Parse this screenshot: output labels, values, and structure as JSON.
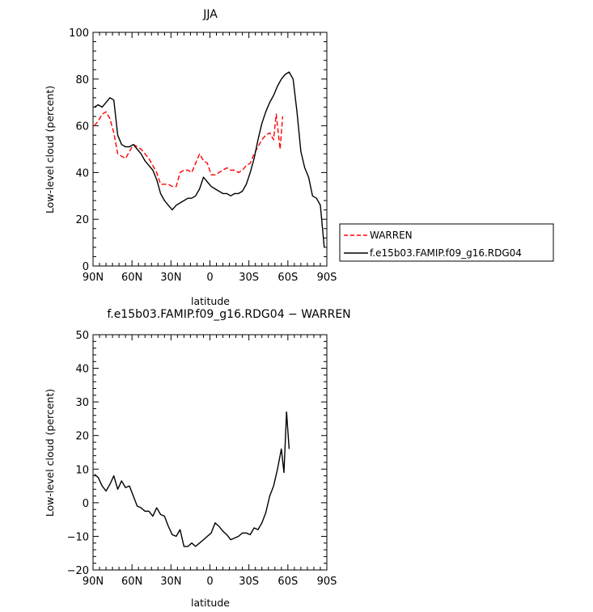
{
  "chart_data": [
    {
      "type": "line",
      "title": "JJA",
      "xlabel": "latitude",
      "ylabel": "Low-level cloud (percent)",
      "xlim": [
        90,
        -90
      ],
      "ylim": [
        0,
        100
      ],
      "x_ticks": [
        90,
        60,
        30,
        0,
        -30,
        -60,
        -90
      ],
      "x_tick_labels": [
        "90N",
        "60N",
        "30N",
        "0",
        "30S",
        "60S",
        "90S"
      ],
      "y_ticks": [
        0,
        20,
        40,
        60,
        80,
        100
      ],
      "y_tick_labels": [
        "0",
        "20",
        "40",
        "60",
        "80",
        "100"
      ],
      "legend_position": "right-outside",
      "series": [
        {
          "name": "WARREN",
          "color": "#ff0000",
          "style": "dashed",
          "points": [
            [
              89,
              60
            ],
            [
              86,
              62
            ],
            [
              83,
              65
            ],
            [
              80,
              66
            ],
            [
              77,
              63
            ],
            [
              74,
              57
            ],
            [
              71,
              48
            ],
            [
              68,
              47
            ],
            [
              65,
              46
            ],
            [
              62,
              49
            ],
            [
              59,
              52
            ],
            [
              56,
              51
            ],
            [
              53,
              50
            ],
            [
              50,
              48
            ],
            [
              47,
              46
            ],
            [
              44,
              43
            ],
            [
              41,
              40
            ],
            [
              38,
              35
            ],
            [
              35,
              35
            ],
            [
              32,
              35
            ],
            [
              29,
              34
            ],
            [
              26,
              34
            ],
            [
              23,
              40
            ],
            [
              20,
              41
            ],
            [
              17,
              41
            ],
            [
              14,
              40
            ],
            [
              11,
              44
            ],
            [
              8,
              48
            ],
            [
              5,
              45
            ],
            [
              2,
              44
            ],
            [
              -1,
              39
            ],
            [
              -4,
              39
            ],
            [
              -7,
              40
            ],
            [
              -10,
              41
            ],
            [
              -13,
              42
            ],
            [
              -16,
              41
            ],
            [
              -19,
              41
            ],
            [
              -22,
              40
            ],
            [
              -25,
              41
            ],
            [
              -28,
              43
            ],
            [
              -31,
              44
            ],
            [
              -34,
              48
            ],
            [
              -37,
              51
            ],
            [
              -40,
              54
            ],
            [
              -43,
              56
            ],
            [
              -46,
              57
            ],
            [
              -49,
              54
            ],
            [
              -51,
              65
            ],
            [
              -54,
              50
            ],
            [
              -56,
              64
            ]
          ]
        },
        {
          "name": "f.e15b03.FAMIP.f09_g16.RDG04",
          "color": "#000000",
          "style": "solid",
          "points": [
            [
              89,
              68
            ],
            [
              86,
              69
            ],
            [
              83,
              68
            ],
            [
              80,
              70
            ],
            [
              77,
              72
            ],
            [
              74,
              71
            ],
            [
              71,
              56
            ],
            [
              68,
              52
            ],
            [
              65,
              51
            ],
            [
              62,
              51
            ],
            [
              59,
              52
            ],
            [
              56,
              50
            ],
            [
              53,
              48
            ],
            [
              50,
              45
            ],
            [
              47,
              43
            ],
            [
              44,
              41
            ],
            [
              41,
              37
            ],
            [
              38,
              31
            ],
            [
              35,
              28
            ],
            [
              32,
              26
            ],
            [
              29,
              24
            ],
            [
              26,
              26
            ],
            [
              23,
              27
            ],
            [
              20,
              28
            ],
            [
              17,
              29
            ],
            [
              14,
              29
            ],
            [
              11,
              30
            ],
            [
              8,
              33
            ],
            [
              5,
              38
            ],
            [
              2,
              36
            ],
            [
              -1,
              34
            ],
            [
              -4,
              33
            ],
            [
              -7,
              32
            ],
            [
              -10,
              31
            ],
            [
              -13,
              31
            ],
            [
              -16,
              30
            ],
            [
              -19,
              31
            ],
            [
              -22,
              31
            ],
            [
              -25,
              32
            ],
            [
              -28,
              35
            ],
            [
              -31,
              40
            ],
            [
              -34,
              46
            ],
            [
              -37,
              54
            ],
            [
              -40,
              61
            ],
            [
              -43,
              66
            ],
            [
              -46,
              70
            ],
            [
              -49,
              73
            ],
            [
              -52,
              77
            ],
            [
              -55,
              80
            ],
            [
              -58,
              82
            ],
            [
              -61,
              83
            ],
            [
              -64,
              80
            ],
            [
              -67,
              66
            ],
            [
              -70,
              49
            ],
            [
              -73,
              42
            ],
            [
              -76,
              38
            ],
            [
              -79,
              30
            ],
            [
              -82,
              29
            ],
            [
              -85,
              26
            ],
            [
              -88,
              8
            ]
          ]
        }
      ]
    },
    {
      "type": "line",
      "title": "f.e15b03.FAMIP.f09_g16.RDG04 − WARREN",
      "xlabel": "latitude",
      "ylabel": "Low-level cloud (percent)",
      "xlim": [
        90,
        -90
      ],
      "ylim": [
        -20,
        50
      ],
      "x_ticks": [
        90,
        60,
        30,
        0,
        -30,
        -60,
        -90
      ],
      "x_tick_labels": [
        "90N",
        "60N",
        "30N",
        "0",
        "30S",
        "60S",
        "90S"
      ],
      "y_ticks": [
        -20,
        -10,
        0,
        10,
        20,
        30,
        40,
        50
      ],
      "y_tick_labels": [
        "−20",
        "−10",
        "0",
        "10",
        "20",
        "30",
        "40",
        "50"
      ],
      "series": [
        {
          "color": "#000000",
          "style": "solid",
          "points": [
            [
              89,
              8.5
            ],
            [
              86,
              7.5
            ],
            [
              83,
              5
            ],
            [
              80,
              3.5
            ],
            [
              77,
              5.5
            ],
            [
              74,
              8
            ],
            [
              71,
              4
            ],
            [
              68,
              6.5
            ],
            [
              65,
              4.5
            ],
            [
              62,
              5
            ],
            [
              59,
              2
            ],
            [
              56,
              -1
            ],
            [
              53,
              -1.5
            ],
            [
              50,
              -2.5
            ],
            [
              47,
              -2.5
            ],
            [
              44,
              -4
            ],
            [
              41,
              -1.5
            ],
            [
              38,
              -3.5
            ],
            [
              35,
              -4
            ],
            [
              32,
              -7
            ],
            [
              29,
              -9.5
            ],
            [
              26,
              -10
            ],
            [
              23,
              -8
            ],
            [
              20,
              -13
            ],
            [
              17,
              -13
            ],
            [
              14,
              -12
            ],
            [
              11,
              -13
            ],
            [
              8,
              -12
            ],
            [
              5,
              -11
            ],
            [
              2,
              -10
            ],
            [
              -1,
              -9
            ],
            [
              -4,
              -6
            ],
            [
              -7,
              -7
            ],
            [
              -10,
              -8.5
            ],
            [
              -13,
              -9.5
            ],
            [
              -16,
              -11
            ],
            [
              -19,
              -10.5
            ],
            [
              -22,
              -10
            ],
            [
              -25,
              -9
            ],
            [
              -28,
              -9
            ],
            [
              -31,
              -9.5
            ],
            [
              -34,
              -7.5
            ],
            [
              -37,
              -8
            ],
            [
              -40,
              -6
            ],
            [
              -43,
              -3
            ],
            [
              -46,
              2
            ],
            [
              -49,
              5
            ],
            [
              -52,
              10
            ],
            [
              -55,
              16
            ],
            [
              -57,
              9
            ],
            [
              -59,
              27
            ],
            [
              -61,
              16
            ]
          ]
        }
      ]
    }
  ]
}
